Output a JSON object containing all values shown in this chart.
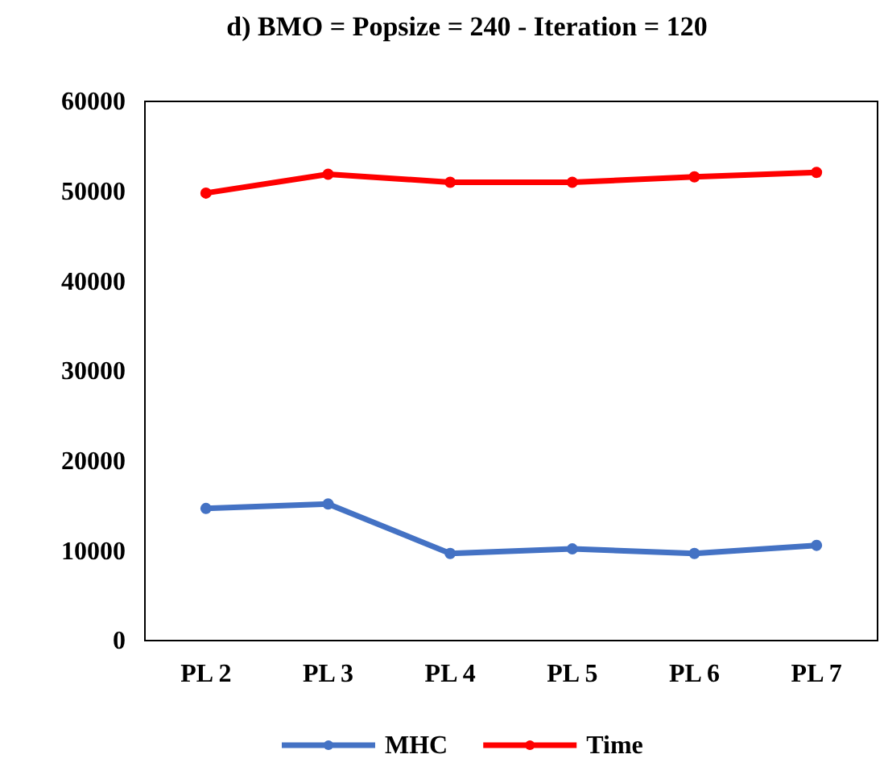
{
  "chart_data": {
    "type": "line",
    "title": "d) BMO = Popsize = 240 - Iteration = 120",
    "categories": [
      "PL 2",
      "PL 3",
      "PL 4",
      "PL 5",
      "PL 6",
      "PL 7"
    ],
    "series": [
      {
        "name": "MHC",
        "color": "#4472c4",
        "values": [
          14700,
          15200,
          9700,
          10200,
          9700,
          10600
        ]
      },
      {
        "name": "Time",
        "color": "#ff0000",
        "values": [
          49800,
          51900,
          51000,
          51000,
          51600,
          52100
        ]
      }
    ],
    "ylim": [
      0,
      60000
    ],
    "yticks": [
      0,
      10000,
      20000,
      30000,
      40000,
      50000,
      60000
    ],
    "marker": "circle",
    "legend": "bottom"
  }
}
